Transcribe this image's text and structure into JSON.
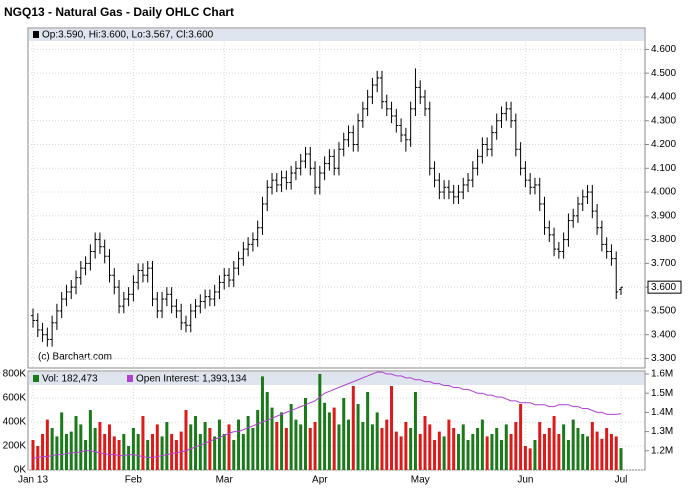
{
  "chart_data": {
    "type": "ohlc",
    "title": "NGQ13 - Natural Gas - Daily OHLC Chart",
    "ohlc_label": "Op:3.590, Hi:3.600, Lo:3.567, Cl:3.600",
    "watermark": "(c) Barchart.com",
    "close_label": {
      "value": 3.6,
      "label": "3.600"
    },
    "color": "#000000",
    "grid": true,
    "categories": [
      "Jan 13",
      null,
      null,
      null,
      null,
      null,
      null,
      null,
      null,
      null,
      null,
      null,
      null,
      null,
      null,
      null,
      null,
      null,
      null,
      null,
      null,
      "Feb",
      null,
      null,
      null,
      null,
      null,
      null,
      null,
      null,
      null,
      null,
      null,
      null,
      null,
      null,
      null,
      null,
      null,
      null,
      "Mar",
      null,
      null,
      null,
      null,
      null,
      null,
      null,
      null,
      null,
      null,
      null,
      null,
      null,
      null,
      null,
      null,
      null,
      null,
      null,
      "Apr",
      null,
      null,
      null,
      null,
      null,
      null,
      null,
      null,
      null,
      null,
      null,
      null,
      null,
      null,
      null,
      null,
      null,
      null,
      null,
      null,
      "May",
      null,
      null,
      null,
      null,
      null,
      null,
      null,
      null,
      null,
      null,
      null,
      null,
      null,
      null,
      null,
      null,
      null,
      null,
      null,
      null,
      null,
      "Jun",
      null,
      null,
      null,
      null,
      null,
      null,
      null,
      null,
      null,
      null,
      null,
      null,
      null,
      null,
      null,
      null,
      null,
      null,
      null,
      "Jul"
    ],
    "open": [
      3.48,
      3.46,
      3.42,
      3.4,
      3.38,
      3.45,
      3.5,
      3.55,
      3.58,
      3.6,
      3.64,
      3.68,
      3.7,
      3.75,
      3.8,
      3.77,
      3.73,
      3.65,
      3.6,
      3.52,
      3.55,
      3.57,
      3.62,
      3.67,
      3.65,
      3.68,
      3.55,
      3.5,
      3.55,
      3.57,
      3.52,
      3.5,
      3.45,
      3.44,
      3.5,
      3.52,
      3.54,
      3.56,
      3.55,
      3.58,
      3.62,
      3.65,
      3.63,
      3.68,
      3.72,
      3.76,
      3.78,
      3.8,
      3.85,
      3.95,
      4.02,
      4.05,
      4.03,
      4.06,
      4.04,
      4.08,
      4.1,
      4.13,
      4.16,
      4.1,
      4.02,
      4.08,
      4.12,
      4.15,
      4.1,
      4.18,
      4.22,
      4.25,
      4.2,
      4.3,
      4.35,
      4.4,
      4.45,
      4.48,
      4.38,
      4.35,
      4.32,
      4.28,
      4.24,
      4.22,
      4.35,
      4.44,
      4.4,
      4.35,
      4.1,
      4.05,
      4.0,
      4.02,
      4.0,
      3.98,
      4.0,
      4.03,
      4.05,
      4.1,
      4.15,
      4.2,
      4.18,
      4.25,
      4.3,
      4.33,
      4.35,
      4.3,
      4.18,
      4.1,
      4.05,
      4.02,
      4.03,
      3.95,
      3.85,
      3.82,
      3.76,
      3.75,
      3.8,
      3.88,
      3.9,
      3.95,
      3.98,
      4.0,
      3.92,
      3.85,
      3.78,
      3.75,
      3.72,
      3.59
    ],
    "high": [
      3.51,
      3.49,
      3.45,
      3.43,
      3.48,
      3.53,
      3.58,
      3.61,
      3.63,
      3.67,
      3.71,
      3.73,
      3.78,
      3.83,
      3.83,
      3.8,
      3.76,
      3.68,
      3.63,
      3.58,
      3.6,
      3.65,
      3.7,
      3.7,
      3.71,
      3.71,
      3.58,
      3.58,
      3.6,
      3.6,
      3.55,
      3.53,
      3.48,
      3.53,
      3.55,
      3.57,
      3.59,
      3.59,
      3.61,
      3.65,
      3.68,
      3.68,
      3.71,
      3.75,
      3.79,
      3.81,
      3.83,
      3.88,
      3.98,
      4.05,
      4.08,
      4.08,
      4.09,
      4.09,
      4.11,
      4.13,
      4.16,
      4.19,
      4.19,
      4.13,
      4.11,
      4.15,
      4.18,
      4.18,
      4.21,
      4.25,
      4.28,
      4.28,
      4.33,
      4.38,
      4.43,
      4.48,
      4.51,
      4.51,
      4.41,
      4.38,
      4.35,
      4.31,
      4.27,
      4.38,
      4.52,
      4.47,
      4.43,
      4.38,
      4.13,
      4.08,
      4.05,
      4.05,
      4.03,
      4.03,
      4.06,
      4.08,
      4.13,
      4.18,
      4.23,
      4.23,
      4.28,
      4.33,
      4.36,
      4.38,
      4.38,
      4.33,
      4.21,
      4.13,
      4.08,
      4.06,
      4.06,
      3.98,
      3.88,
      3.85,
      3.79,
      3.83,
      3.91,
      3.93,
      3.98,
      4.01,
      4.03,
      4.03,
      3.95,
      3.88,
      3.81,
      3.78,
      3.75,
      3.6
    ],
    "low": [
      3.43,
      3.39,
      3.37,
      3.35,
      3.35,
      3.42,
      3.47,
      3.52,
      3.55,
      3.57,
      3.61,
      3.65,
      3.67,
      3.72,
      3.74,
      3.7,
      3.62,
      3.57,
      3.49,
      3.49,
      3.52,
      3.54,
      3.59,
      3.62,
      3.62,
      3.52,
      3.47,
      3.47,
      3.52,
      3.49,
      3.47,
      3.42,
      3.41,
      3.41,
      3.47,
      3.49,
      3.51,
      3.52,
      3.52,
      3.55,
      3.59,
      3.6,
      3.6,
      3.65,
      3.69,
      3.73,
      3.75,
      3.77,
      3.82,
      3.92,
      3.99,
      4.0,
      4.0,
      4.01,
      4.01,
      4.05,
      4.07,
      4.1,
      4.07,
      3.99,
      3.99,
      4.05,
      4.09,
      4.07,
      4.07,
      4.15,
      4.19,
      4.17,
      4.17,
      4.27,
      4.32,
      4.37,
      4.42,
      4.35,
      4.32,
      4.29,
      4.25,
      4.21,
      4.17,
      4.19,
      4.32,
      4.37,
      4.32,
      4.07,
      4.02,
      3.97,
      3.97,
      3.97,
      3.95,
      3.95,
      3.97,
      4.0,
      4.02,
      4.07,
      4.12,
      4.15,
      4.15,
      4.22,
      4.27,
      4.3,
      4.27,
      4.15,
      4.07,
      4.02,
      3.99,
      3.99,
      3.92,
      3.82,
      3.79,
      3.73,
      3.72,
      3.72,
      3.77,
      3.85,
      3.87,
      3.92,
      3.95,
      3.89,
      3.82,
      3.75,
      3.72,
      3.69,
      3.55,
      3.567
    ],
    "close": [
      3.46,
      3.42,
      3.4,
      3.38,
      3.45,
      3.5,
      3.55,
      3.58,
      3.6,
      3.64,
      3.68,
      3.7,
      3.75,
      3.8,
      3.77,
      3.73,
      3.65,
      3.6,
      3.52,
      3.55,
      3.57,
      3.62,
      3.67,
      3.65,
      3.68,
      3.55,
      3.5,
      3.55,
      3.57,
      3.52,
      3.5,
      3.45,
      3.44,
      3.5,
      3.52,
      3.54,
      3.56,
      3.55,
      3.58,
      3.62,
      3.65,
      3.63,
      3.68,
      3.72,
      3.76,
      3.78,
      3.8,
      3.85,
      3.95,
      4.02,
      4.05,
      4.03,
      4.06,
      4.04,
      4.08,
      4.1,
      4.13,
      4.16,
      4.1,
      4.02,
      4.08,
      4.12,
      4.15,
      4.1,
      4.18,
      4.22,
      4.25,
      4.2,
      4.3,
      4.35,
      4.4,
      4.45,
      4.48,
      4.38,
      4.35,
      4.32,
      4.28,
      4.24,
      4.22,
      4.35,
      4.44,
      4.4,
      4.35,
      4.1,
      4.05,
      4.0,
      4.02,
      4.0,
      3.98,
      4.0,
      4.03,
      4.05,
      4.1,
      4.15,
      4.2,
      4.18,
      4.25,
      4.3,
      4.33,
      4.35,
      4.3,
      4.18,
      4.1,
      4.05,
      4.02,
      4.03,
      3.95,
      3.85,
      3.82,
      3.76,
      3.75,
      3.8,
      3.88,
      3.9,
      3.95,
      3.98,
      4.0,
      3.92,
      3.85,
      3.78,
      3.75,
      3.72,
      3.58,
      3.6
    ],
    "ylim": [
      3.26,
      4.69
    ],
    "yticks": [
      {
        "value": 3.3,
        "label": "3.300"
      },
      {
        "value": 3.4,
        "label": "3.400"
      },
      {
        "value": 3.5,
        "label": "3.500"
      },
      {
        "value": 3.6,
        "label": "3.600"
      },
      {
        "value": 3.7,
        "label": "3.700"
      },
      {
        "value": 3.8,
        "label": "3.800"
      },
      {
        "value": 3.9,
        "label": "3.900"
      },
      {
        "value": 4.0,
        "label": "4.000"
      },
      {
        "value": 4.1,
        "label": "4.100"
      },
      {
        "value": 4.2,
        "label": "4.200"
      },
      {
        "value": 4.3,
        "label": "4.300"
      },
      {
        "value": 4.4,
        "label": "4.400"
      },
      {
        "value": 4.5,
        "label": "4.500"
      },
      {
        "value": 4.6,
        "label": "4.600"
      }
    ],
    "volume": {
      "name": "Vol: 182,473",
      "up_color": "#1a7a1a",
      "down_color": "#dd1a1a",
      "values": [
        250000,
        200000,
        300000,
        420000,
        350000,
        280000,
        480000,
        300000,
        320000,
        450000,
        380000,
        250000,
        500000,
        350000,
        400000,
        300000,
        380000,
        280000,
        250000,
        300000,
        200000,
        350000,
        300000,
        450000,
        250000,
        300000,
        380000,
        280000,
        400000,
        300000,
        250000,
        320000,
        500000,
        380000,
        450000,
        300000,
        400000,
        350000,
        280000,
        420000,
        300000,
        380000,
        250000,
        420000,
        300000,
        450000,
        350000,
        500000,
        780000,
        650000,
        520000,
        400000,
        480000,
        350000,
        550000,
        420000,
        380000,
        600000,
        350000,
        400000,
        800000,
        560000,
        480000,
        520000,
        380000,
        600000,
        420000,
        700000,
        550000,
        400000,
        650000,
        380000,
        480000,
        350000,
        420000,
        700000,
        320000,
        280000,
        400000,
        350000,
        650000,
        300000,
        450000,
        380000,
        250000,
        320000,
        280000,
        420000,
        350000,
        300000,
        380000,
        250000,
        300000,
        350000,
        420000,
        280000,
        300000,
        350000,
        250000,
        380000,
        300000,
        400000,
        550000,
        200000,
        180000,
        250000,
        400000,
        300000,
        350000,
        450000,
        300000,
        380000,
        250000,
        420000,
        350000,
        300000,
        280000,
        400000,
        320000,
        260000,
        350000,
        300000,
        280000,
        182473
      ],
      "ylim": [
        0,
        800000
      ],
      "yticks": [
        {
          "value": 0,
          "label": "0K"
        },
        {
          "value": 200000,
          "label": "200K"
        },
        {
          "value": 400000,
          "label": "400K"
        },
        {
          "value": 600000,
          "label": "600K"
        },
        {
          "value": 800000,
          "label": "800K"
        }
      ]
    },
    "open_interest": {
      "name": "Open Interest: 1,393,134",
      "color": "#b040d0",
      "axis": "y2",
      "values": [
        1160000,
        1165000,
        1170000,
        1170000,
        1175000,
        1180000,
        1180000,
        1185000,
        1190000,
        1190000,
        1195000,
        1200000,
        1200000,
        1195000,
        1190000,
        1185000,
        1180000,
        1180000,
        1175000,
        1175000,
        1180000,
        1180000,
        1175000,
        1170000,
        1165000,
        1165000,
        1170000,
        1175000,
        1180000,
        1185000,
        1190000,
        1195000,
        1200000,
        1210000,
        1220000,
        1230000,
        1240000,
        1250000,
        1260000,
        1270000,
        1280000,
        1290000,
        1300000,
        1300000,
        1310000,
        1320000,
        1330000,
        1340000,
        1350000,
        1360000,
        1370000,
        1380000,
        1390000,
        1400000,
        1410000,
        1420000,
        1430000,
        1440000,
        1450000,
        1460000,
        1480000,
        1500000,
        1510000,
        1520000,
        1530000,
        1540000,
        1550000,
        1560000,
        1570000,
        1580000,
        1590000,
        1600000,
        1610000,
        1610000,
        1600000,
        1600000,
        1590000,
        1590000,
        1580000,
        1580000,
        1570000,
        1570000,
        1560000,
        1560000,
        1550000,
        1550000,
        1540000,
        1540000,
        1530000,
        1530000,
        1520000,
        1520000,
        1510000,
        1500000,
        1500000,
        1490000,
        1490000,
        1480000,
        1480000,
        1470000,
        1460000,
        1460000,
        1450000,
        1450000,
        1450000,
        1440000,
        1440000,
        1440000,
        1430000,
        1430000,
        1440000,
        1440000,
        1440000,
        1430000,
        1430000,
        1420000,
        1420000,
        1410000,
        1400000,
        1400000,
        1390000,
        1390000,
        1390000,
        1393134
      ],
      "y2lim": [
        1100000,
        1600000
      ],
      "y2ticks": [
        {
          "value": 1200000,
          "label": "1.2M"
        },
        {
          "value": 1300000,
          "label": "1.3M"
        },
        {
          "value": 1400000,
          "label": "1.4M"
        },
        {
          "value": 1500000,
          "label": "1.5M"
        },
        {
          "value": 1600000,
          "label": "1.6M"
        }
      ]
    }
  }
}
